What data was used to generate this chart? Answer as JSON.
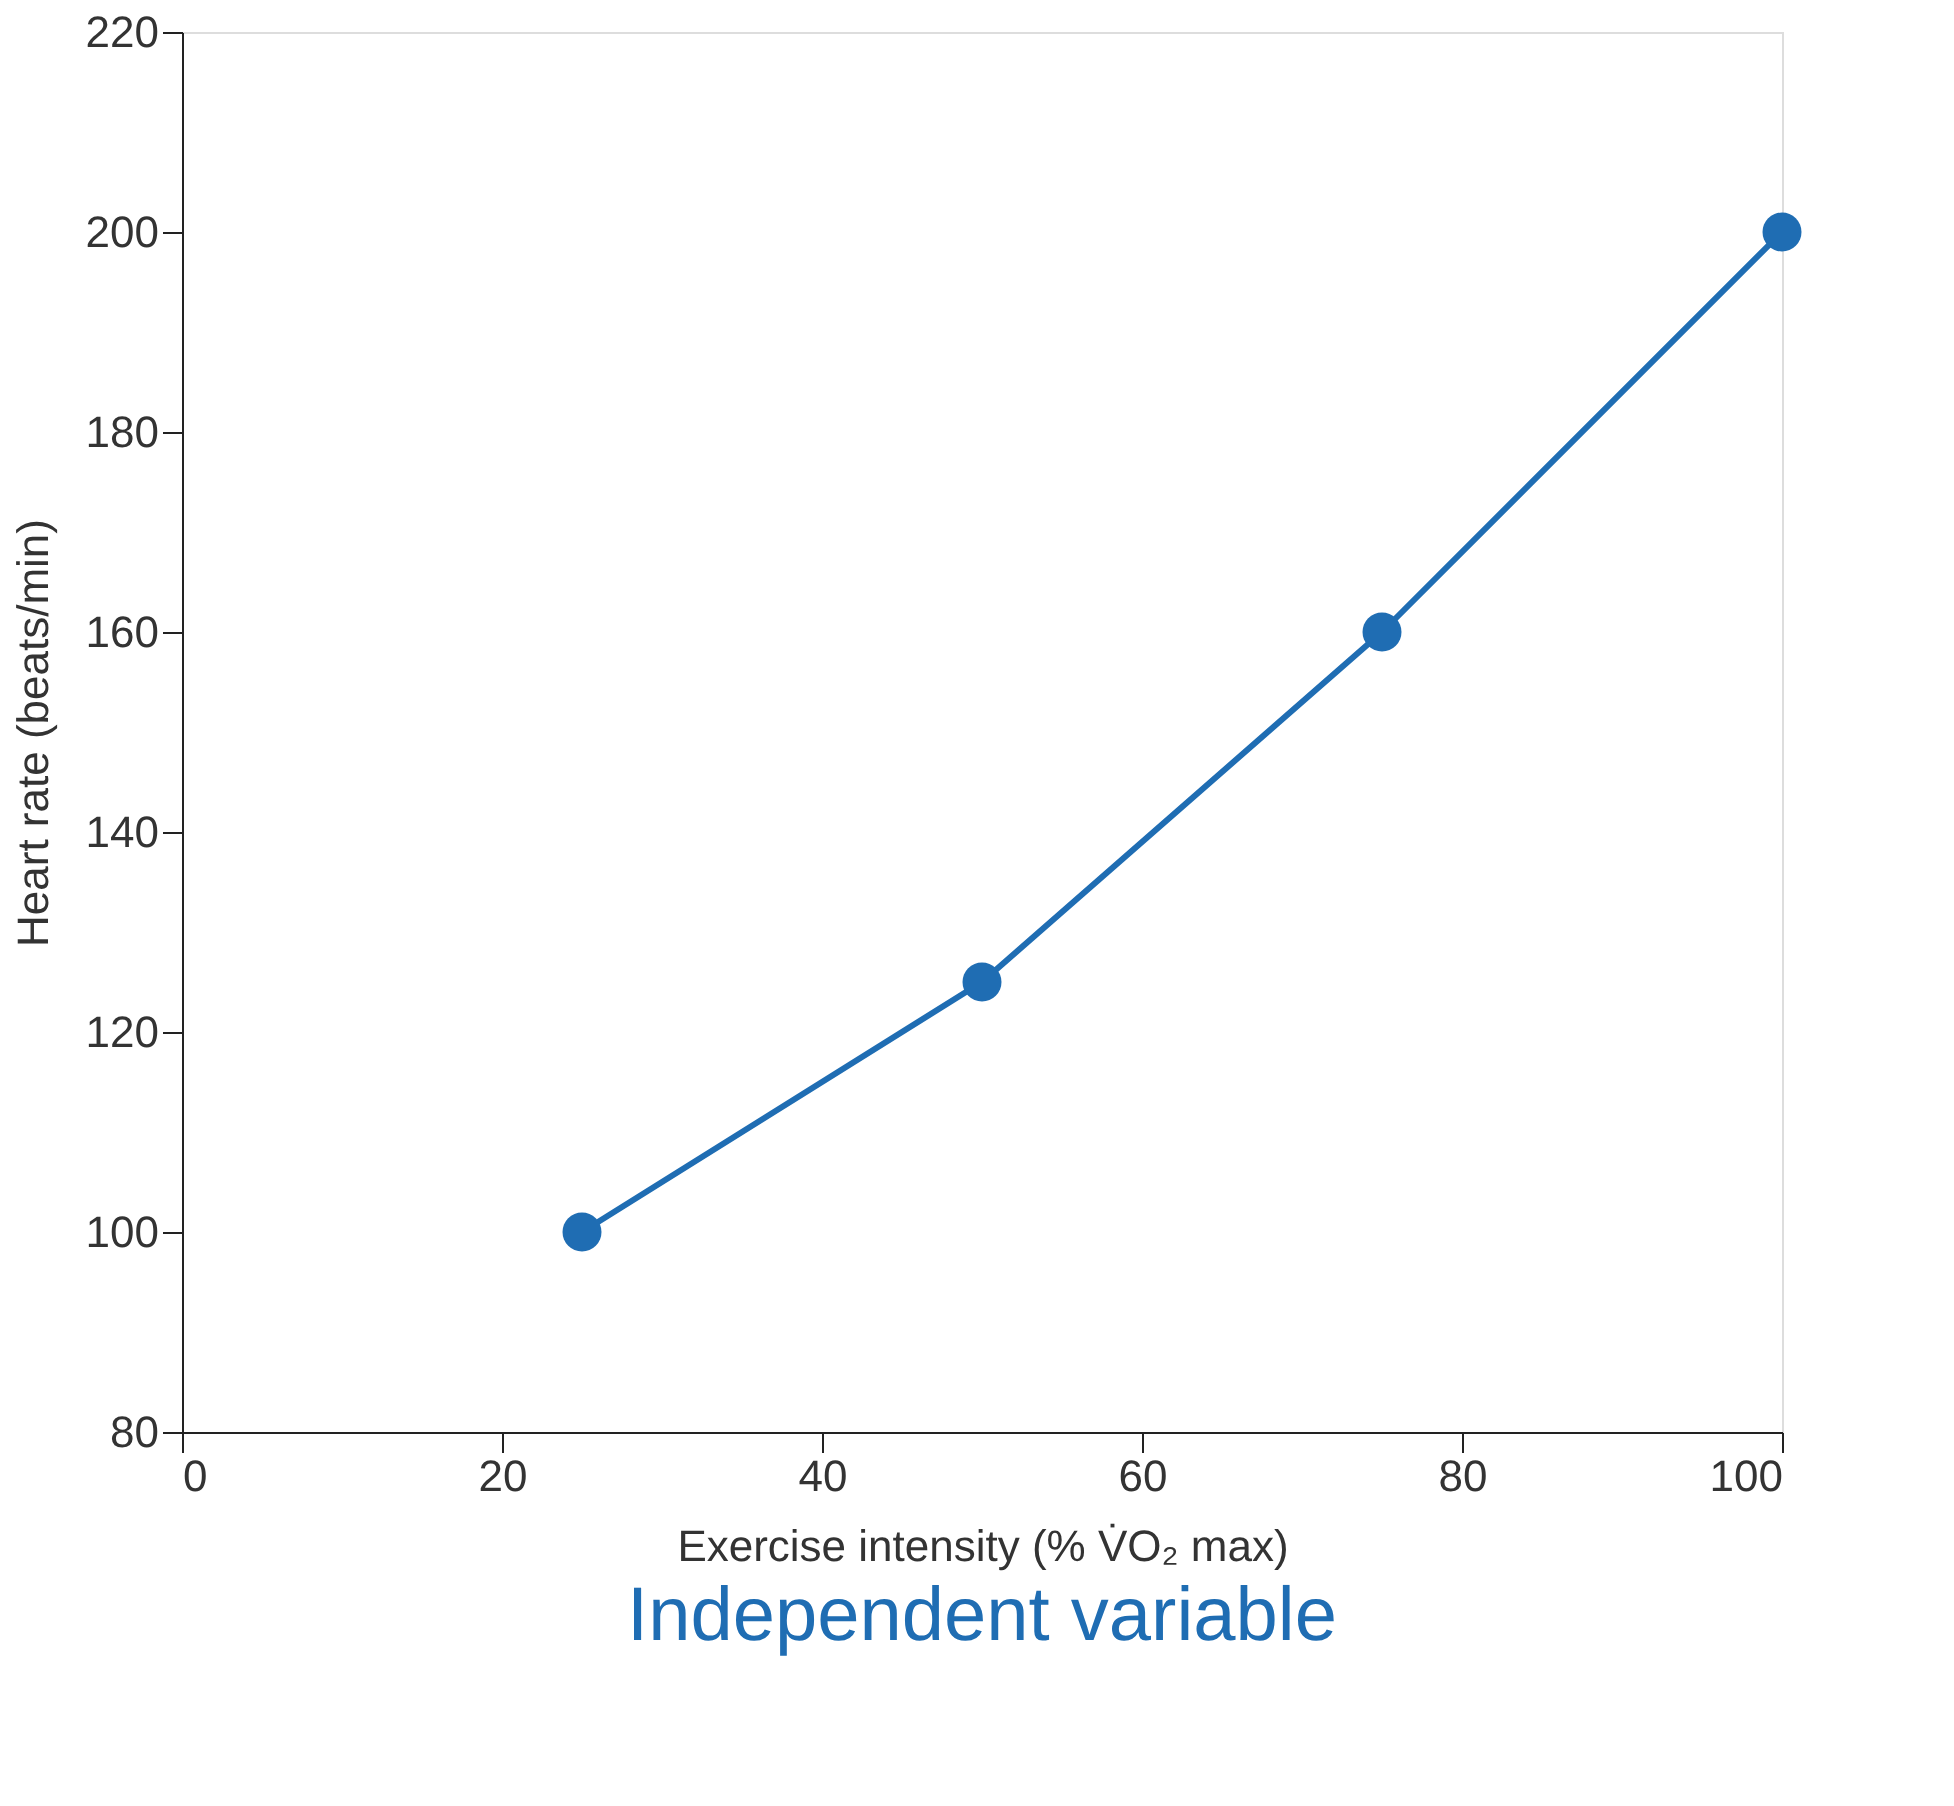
{
  "chart_data": {
    "type": "line",
    "xlabel": "Exercise intensity (% V̇O₂ max)",
    "ylabel": "Heart rate (beats/min)",
    "annotations": [
      "Independent variable"
    ],
    "x": [
      25,
      50,
      75,
      100
    ],
    "series": [
      {
        "color": "#1f6db3",
        "values": [
          100,
          125,
          160,
          200
        ]
      }
    ],
    "xlim": [
      0,
      100
    ],
    "xticks": [
      0,
      20,
      40,
      60,
      80,
      100
    ],
    "ylim": [
      80,
      220
    ],
    "yticks": [
      80,
      100,
      120,
      140,
      160,
      180,
      200,
      220
    ],
    "marker": "circle",
    "line_style": "solid",
    "grid": false,
    "legend": false
  }
}
